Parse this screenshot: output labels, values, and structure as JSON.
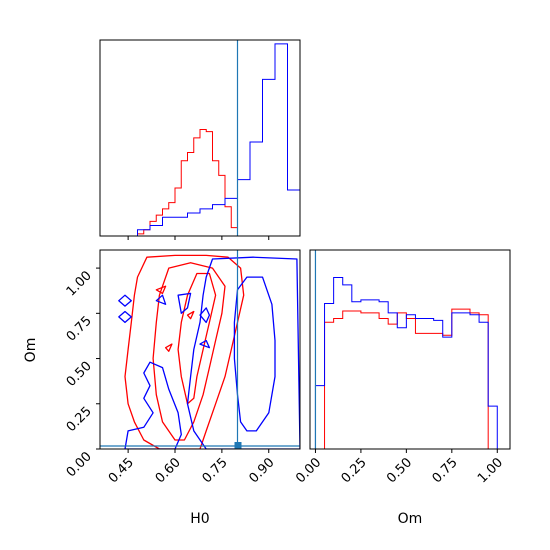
{
  "colors": {
    "series_a": "#ff0000",
    "series_b": "#0000ff",
    "truth": "#1f77b4",
    "frame": "#000000"
  },
  "chart_data": [
    {
      "type": "histogram",
      "panel": "top-left",
      "variable": "H0",
      "xlim": [
        0.36,
        1.0
      ],
      "truth": 0.8,
      "series": [
        {
          "color": "#ff0000",
          "bin_edges": [
            0.48,
            0.5,
            0.52,
            0.54,
            0.56,
            0.58,
            0.6,
            0.62,
            0.64,
            0.66,
            0.68,
            0.7,
            0.72,
            0.74,
            0.76,
            0.78,
            0.8
          ],
          "counts": [
            1,
            3,
            7,
            10,
            13,
            16,
            23,
            36,
            40,
            47,
            51,
            50,
            36,
            29,
            14,
            4
          ]
        },
        {
          "color": "#0000ff",
          "bin_edges": [
            0.48,
            0.52,
            0.56,
            0.6,
            0.64,
            0.68,
            0.72,
            0.76,
            0.8,
            0.84,
            0.88,
            0.92,
            0.96,
            1.0
          ],
          "counts": [
            3,
            5,
            9,
            9,
            11,
            13,
            15,
            18,
            27,
            45,
            75,
            92,
            22,
            5
          ]
        }
      ]
    },
    {
      "type": "contour",
      "panel": "bottom-left",
      "xlabel": "H0",
      "ylabel": "Om",
      "xlim": [
        0.36,
        1.0
      ],
      "ylim": [
        0.0,
        1.1
      ],
      "xticks": [
        "0.45",
        "0.60",
        "0.75",
        "0.90"
      ],
      "yticks": [
        "0.00",
        "0.25",
        "0.50",
        "0.75",
        "1.00"
      ],
      "truth": {
        "x": 0.8,
        "y": 0.0
      },
      "series": [
        {
          "color": "#ff0000",
          "contours": [
            [
              [
                0.55,
                0.0
              ],
              [
                0.5,
                0.05
              ],
              [
                0.47,
                0.15
              ],
              [
                0.45,
                0.25
              ],
              [
                0.44,
                0.4
              ],
              [
                0.45,
                0.55
              ],
              [
                0.46,
                0.7
              ],
              [
                0.47,
                0.85
              ],
              [
                0.48,
                0.95
              ],
              [
                0.51,
                1.06
              ],
              [
                0.6,
                1.07
              ],
              [
                0.7,
                1.07
              ],
              [
                0.77,
                1.06
              ],
              [
                0.81,
                1.0
              ],
              [
                0.82,
                0.85
              ],
              [
                0.8,
                0.7
              ],
              [
                0.78,
                0.55
              ],
              [
                0.76,
                0.4
              ],
              [
                0.73,
                0.25
              ],
              [
                0.7,
                0.1
              ],
              [
                0.68,
                0.0
              ]
            ],
            [
              [
                0.6,
                0.05
              ],
              [
                0.56,
                0.15
              ],
              [
                0.54,
                0.3
              ],
              [
                0.53,
                0.5
              ],
              [
                0.54,
                0.7
              ],
              [
                0.55,
                0.85
              ],
              [
                0.58,
                1.0
              ],
              [
                0.65,
                1.03
              ],
              [
                0.72,
                1.0
              ],
              [
                0.76,
                0.9
              ],
              [
                0.75,
                0.75
              ],
              [
                0.73,
                0.6
              ],
              [
                0.71,
                0.45
              ],
              [
                0.69,
                0.3
              ],
              [
                0.66,
                0.15
              ],
              [
                0.63,
                0.05
              ]
            ],
            [
              [
                0.64,
                0.25
              ],
              [
                0.62,
                0.4
              ],
              [
                0.61,
                0.55
              ],
              [
                0.62,
                0.7
              ],
              [
                0.64,
                0.85
              ],
              [
                0.67,
                0.97
              ],
              [
                0.71,
                0.97
              ],
              [
                0.73,
                0.85
              ],
              [
                0.71,
                0.7
              ],
              [
                0.69,
                0.55
              ],
              [
                0.67,
                0.4
              ],
              [
                0.66,
                0.28
              ]
            ],
            [
              [
                0.54,
                0.88
              ],
              [
                0.57,
                0.9
              ],
              [
                0.56,
                0.86
              ]
            ],
            [
              [
                0.64,
                0.74
              ],
              [
                0.66,
                0.76
              ],
              [
                0.65,
                0.72
              ]
            ],
            [
              [
                0.57,
                0.56
              ],
              [
                0.59,
                0.58
              ],
              [
                0.58,
                0.54
              ]
            ]
          ]
        },
        {
          "color": "#0000ff",
          "contours": [
            [
              [
                0.44,
                0.0
              ],
              [
                0.45,
                0.1
              ],
              [
                0.5,
                0.12
              ],
              [
                0.53,
                0.2
              ],
              [
                0.5,
                0.28
              ],
              [
                0.52,
                0.35
              ],
              [
                0.5,
                0.42
              ],
              [
                0.52,
                0.48
              ],
              [
                0.56,
                0.45
              ],
              [
                0.58,
                0.33
              ],
              [
                0.61,
                0.2
              ],
              [
                0.62,
                0.08
              ],
              [
                0.6,
                0.0
              ]
            ],
            [
              [
                0.7,
                0.0
              ],
              [
                0.66,
                0.1
              ],
              [
                0.64,
                0.25
              ],
              [
                0.65,
                0.4
              ],
              [
                0.66,
                0.55
              ],
              [
                0.68,
                0.7
              ],
              [
                0.69,
                0.85
              ],
              [
                0.7,
                0.95
              ],
              [
                0.72,
                1.05
              ],
              [
                0.85,
                1.06
              ],
              [
                0.99,
                1.05
              ],
              [
                1.0,
                0.0
              ]
            ],
            [
              [
                0.81,
                0.15
              ],
              [
                0.8,
                0.3
              ],
              [
                0.79,
                0.5
              ],
              [
                0.79,
                0.7
              ],
              [
                0.8,
                0.88
              ],
              [
                0.83,
                0.95
              ],
              [
                0.88,
                0.95
              ],
              [
                0.91,
                0.8
              ],
              [
                0.92,
                0.6
              ],
              [
                0.92,
                0.4
              ],
              [
                0.9,
                0.2
              ],
              [
                0.86,
                0.1
              ],
              [
                0.83,
                0.1
              ]
            ],
            [
              [
                0.42,
                0.82
              ],
              [
                0.44,
                0.85
              ],
              [
                0.46,
                0.82
              ],
              [
                0.44,
                0.79
              ]
            ],
            [
              [
                0.42,
                0.73
              ],
              [
                0.44,
                0.76
              ],
              [
                0.46,
                0.73
              ],
              [
                0.44,
                0.7
              ]
            ],
            [
              [
                0.62,
                0.75
              ],
              [
                0.61,
                0.85
              ],
              [
                0.65,
                0.86
              ],
              [
                0.64,
                0.78
              ]
            ],
            [
              [
                0.68,
                0.74
              ],
              [
                0.7,
                0.78
              ],
              [
                0.71,
                0.74
              ],
              [
                0.7,
                0.7
              ]
            ],
            [
              [
                0.54,
                0.82
              ],
              [
                0.56,
                0.85
              ],
              [
                0.57,
                0.8
              ]
            ],
            [
              [
                0.68,
                0.58
              ],
              [
                0.7,
                0.6
              ],
              [
                0.71,
                0.56
              ]
            ]
          ]
        }
      ]
    },
    {
      "type": "histogram",
      "panel": "bottom-right",
      "xlabel": "Om",
      "xlim": [
        -0.03,
        1.07
      ],
      "xticks": [
        "0.00",
        "0.25",
        "0.50",
        "0.75",
        "1.00"
      ],
      "truth": 0.0,
      "series": [
        {
          "color": "#ff0000",
          "bin_edges": [
            0.0,
            0.05,
            0.1,
            0.15,
            0.2,
            0.25,
            0.3,
            0.35,
            0.4,
            0.45,
            0.5,
            0.55,
            0.6,
            0.65,
            0.7,
            0.75,
            0.8,
            0.85,
            0.9,
            0.95,
            1.0
          ],
          "counts": [
            0,
            68,
            70,
            74,
            74,
            73,
            73,
            70,
            67,
            73,
            70,
            62,
            62,
            62,
            61,
            75,
            75,
            73,
            72,
            0
          ]
        },
        {
          "color": "#0000ff",
          "bin_edges": [
            0.0,
            0.05,
            0.1,
            0.15,
            0.2,
            0.25,
            0.3,
            0.35,
            0.4,
            0.45,
            0.5,
            0.55,
            0.6,
            0.65,
            0.7,
            0.75,
            0.8,
            0.85,
            0.9,
            0.95,
            1.0
          ],
          "counts": [
            34,
            78,
            92,
            88,
            79,
            80,
            80,
            79,
            73,
            65,
            72,
            70,
            70,
            69,
            60,
            73,
            73,
            72,
            68,
            23
          ]
        }
      ]
    }
  ]
}
